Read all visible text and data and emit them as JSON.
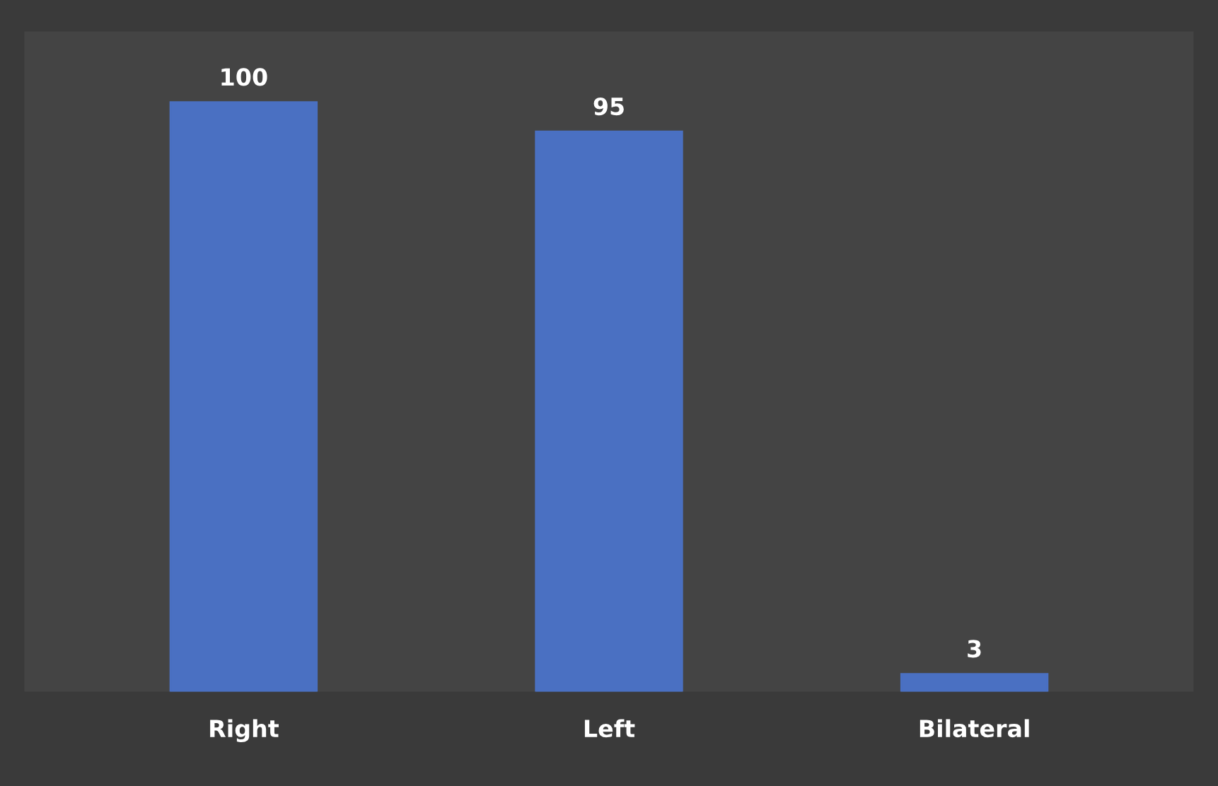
{
  "chart_data": {
    "type": "bar",
    "categories": [
      "Right",
      "Left",
      "Bilateral"
    ],
    "values": [
      100,
      95,
      3
    ],
    "color": "#4a70c2",
    "data_labels": true,
    "grid": false,
    "legend": false
  }
}
